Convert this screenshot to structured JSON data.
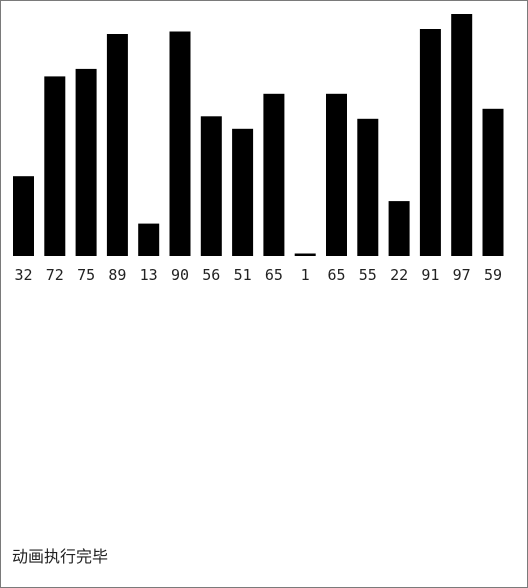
{
  "chart_data": {
    "type": "bar",
    "values": [
      32,
      72,
      75,
      89,
      13,
      90,
      56,
      51,
      65,
      1,
      65,
      55,
      22,
      91,
      97,
      59
    ],
    "categories": [
      "32",
      "72",
      "75",
      "89",
      "13",
      "90",
      "56",
      "51",
      "65",
      "1",
      "65",
      "55",
      "22",
      "91",
      "97",
      "59"
    ],
    "title": "",
    "xlabel": "",
    "ylabel": "",
    "ylim": [
      0,
      97
    ],
    "grid": false,
    "legend": "none",
    "bar_color": "#000000"
  },
  "status": {
    "text": "动画执行完毕"
  }
}
